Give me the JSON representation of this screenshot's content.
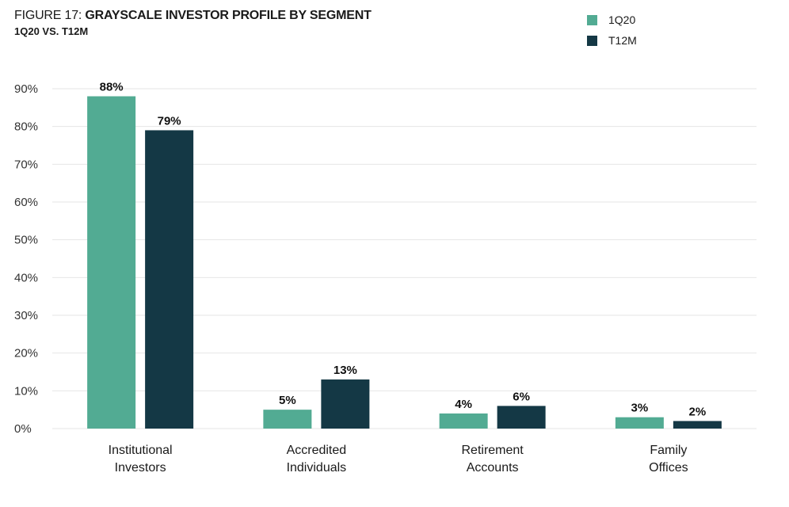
{
  "header": {
    "figure_prefix": "FIGURE 17: ",
    "title": "GRAYSCALE INVESTOR PROFILE BY SEGMENT",
    "subtitle": "1Q20 VS. T12M"
  },
  "colors": {
    "series_1": "#52ab93",
    "series_2": "#143845",
    "gridline": "#e6e6e6"
  },
  "chart_data": {
    "type": "bar",
    "title": "GRAYSCALE INVESTOR PROFILE BY SEGMENT",
    "subtitle": "1Q20 VS. T12M",
    "xlabel": "",
    "ylabel": "",
    "ylim": [
      0,
      90
    ],
    "y_ticks": [
      0,
      10,
      20,
      30,
      40,
      50,
      60,
      70,
      80,
      90
    ],
    "y_tick_format": "percent",
    "grid": true,
    "legend_position": "top-right",
    "categories": [
      [
        "Institutional",
        "Investors"
      ],
      [
        "Accredited",
        "Individuals"
      ],
      [
        "Retirement",
        "Accounts"
      ],
      [
        "Family",
        "Offices"
      ]
    ],
    "series": [
      {
        "name": "1Q20",
        "values": [
          88,
          5,
          4,
          3
        ]
      },
      {
        "name": "T12M",
        "values": [
          79,
          13,
          6,
          2
        ]
      }
    ]
  }
}
